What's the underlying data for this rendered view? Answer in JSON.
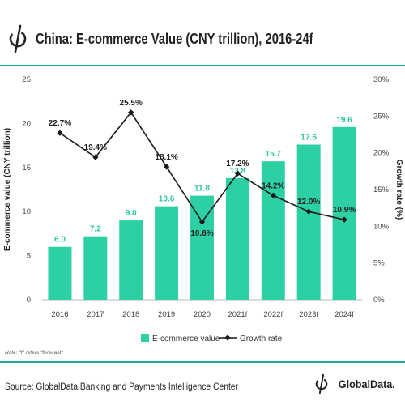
{
  "header": {
    "title": "China: E-commerce Value (CNY trillion), 2016-24f"
  },
  "footer": {
    "note": "Note: \"f\" refers \"forecast\"",
    "source": "Source: GlobalData Banking and Payments Intelligence Center",
    "brand": "GlobalData."
  },
  "colors": {
    "accent": "#1aa99a",
    "bar": "#2cd0a4",
    "bar_label": "#2cc6a0",
    "line": "#1a1a1a"
  },
  "icons": {
    "header_logo": "globaldata-logo-icon",
    "footer_logo": "globaldata-logo-icon"
  },
  "chart_data": {
    "type": "bar",
    "title": "China: E-commerce Value (CNY trillion), 2016-24f",
    "categories": [
      "2016",
      "2017",
      "2018",
      "2019",
      "2020",
      "2021f",
      "2022f",
      "2023f",
      "2024f"
    ],
    "ylabel": "E-commerce value (CNY trillion)",
    "y2label": "Growth rate (%)",
    "ylim": [
      0,
      25
    ],
    "y2lim": [
      0,
      30
    ],
    "yticks": [
      "0",
      "5",
      "10",
      "15",
      "20",
      "25"
    ],
    "y2ticks": [
      "0%",
      "5%",
      "10%",
      "15%",
      "20%",
      "25%",
      "30%"
    ],
    "grid": false,
    "legend_position": "bottom",
    "series": [
      {
        "name": "E-commerce value",
        "type": "bar",
        "axis": "left",
        "values": [
          6.0,
          7.2,
          9.0,
          10.6,
          11.8,
          13.8,
          15.7,
          17.6,
          19.6
        ],
        "labels": [
          "6.0",
          "7.2",
          "9.0",
          "10.6",
          "11.8",
          "13.8",
          "15.7",
          "17.6",
          "19.6"
        ]
      },
      {
        "name": "Growth rate",
        "type": "line",
        "axis": "right",
        "values": [
          22.7,
          19.4,
          25.5,
          18.1,
          10.6,
          17.2,
          14.2,
          12.0,
          10.9
        ],
        "labels": [
          "22.7%",
          "19.4%",
          "25.5%",
          "18.1%",
          "10.6%",
          "17.2%",
          "14.2%",
          "12.0%",
          "10.9%"
        ]
      }
    ]
  }
}
